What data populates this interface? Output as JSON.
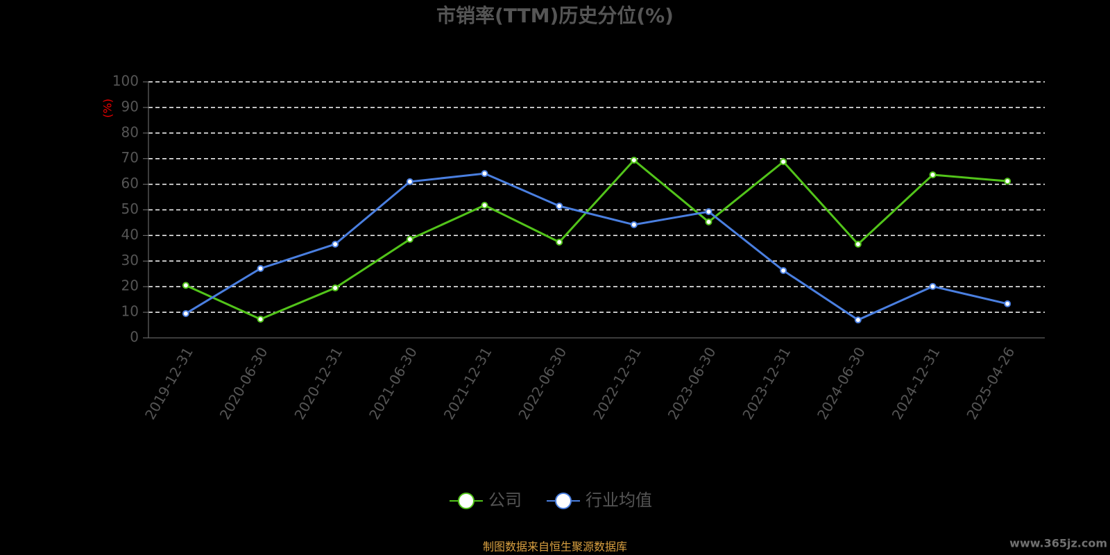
{
  "chart_data": {
    "type": "line",
    "title": "市销率(TTM)历史分位(%)",
    "y_axis_label": "(%)",
    "categories": [
      "2019-12-31",
      "2020-06-30",
      "2020-12-31",
      "2021-06-30",
      "2021-12-31",
      "2022-06-30",
      "2022-12-31",
      "2023-06-30",
      "2023-12-31",
      "2024-06-30",
      "2024-12-31",
      "2025-04-26"
    ],
    "series": [
      {
        "name": "公司",
        "color": "#52c41a",
        "values": [
          20.5,
          7.3,
          19.5,
          38.5,
          51.8,
          37.4,
          69.4,
          45.3,
          68.8,
          36.6,
          63.7,
          61.2
        ]
      },
      {
        "name": "行业均值",
        "color": "#4a7fe0",
        "values": [
          9.5,
          27.1,
          36.6,
          61.0,
          64.2,
          51.5,
          44.2,
          49.3,
          26.3,
          7.0,
          20.1,
          13.3
        ]
      }
    ],
    "ylim": [
      0,
      100
    ],
    "yticks": [
      0,
      10,
      20,
      30,
      40,
      50,
      60,
      70,
      80,
      90,
      100
    ],
    "grid": true,
    "source": "制图数据来自恒生聚源数据库",
    "watermark": "www.365jz.com"
  }
}
